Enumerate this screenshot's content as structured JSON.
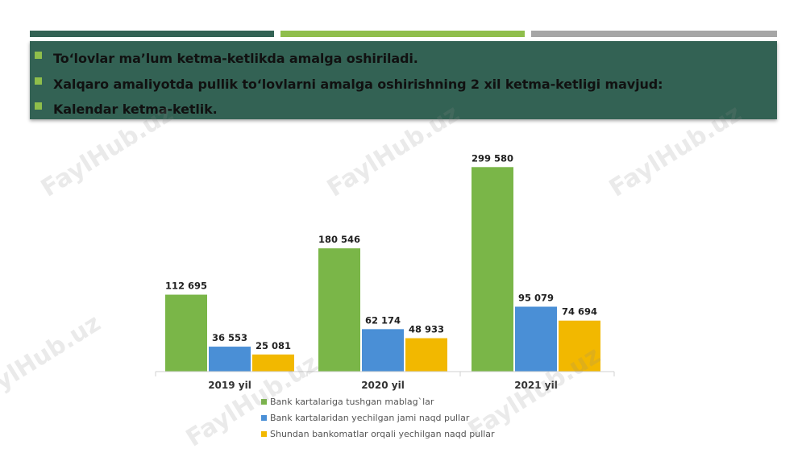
{
  "header_bars": {
    "colors": [
      "#336254",
      "#8fbe4b",
      "#a6a6a6"
    ]
  },
  "bullets": [
    "To‘lovlar ma’lum ketma-ketlikda amalga oshiriladi.",
    "Xalqaro amaliyotda pullik to‘lovlarni amalga oshirishning 2 xil ketma-ketligi mavjud:",
    "Kalendar ketma-ketlik."
  ],
  "watermark": "FaylHub.uz",
  "chart_data": {
    "type": "bar",
    "categories": [
      "2019 yil",
      "2020 yil",
      "2021 yil"
    ],
    "series": [
      {
        "name": "Bank kartalariga tushgan mablag`lar",
        "color": "#7ab648",
        "values": [
          112695,
          180546,
          299580
        ],
        "labels": [
          "112 695",
          "180 546",
          "299 580"
        ]
      },
      {
        "name": "Bank kartalaridan yechilgan jami naqd pullar",
        "color": "#4a8fd6",
        "values": [
          36553,
          62174,
          95079
        ],
        "labels": [
          "36 553",
          "62 174",
          "95 079"
        ]
      },
      {
        "name": "Shundan bankomatlar orqali yechilgan naqd pullar",
        "color": "#f2b800",
        "values": [
          25081,
          48933,
          74694
        ],
        "labels": [
          "25 081",
          "48 933",
          "74 694"
        ]
      }
    ],
    "title": "",
    "xlabel": "",
    "ylabel": "",
    "ylim": [
      0,
      320000
    ],
    "grid": false,
    "legend": "bottom"
  }
}
